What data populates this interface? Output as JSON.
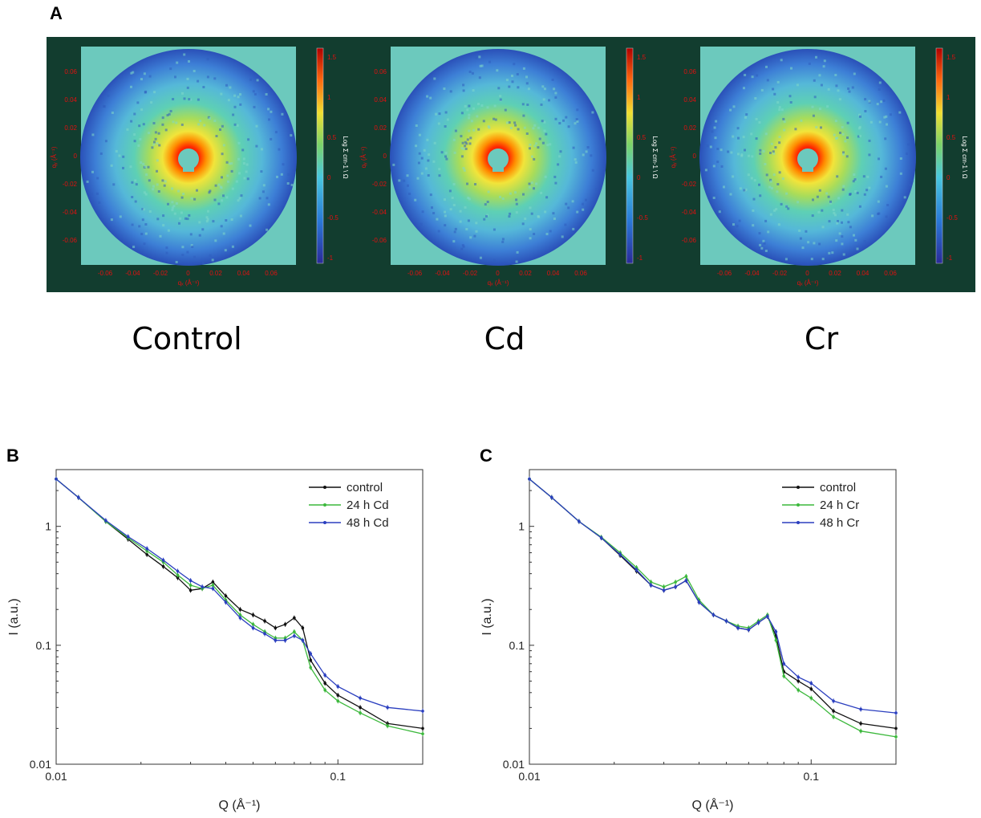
{
  "panels": {
    "a_letter": "A",
    "b_letter": "B",
    "c_letter": "C"
  },
  "patterns": [
    {
      "label": "Control"
    },
    {
      "label": "Cd"
    },
    {
      "label": "Cr"
    }
  ],
  "pattern_axes": {
    "y_ticks": [
      "0.06",
      "0.04",
      "0.02",
      "0",
      "-0.02",
      "-0.04",
      "-0.06"
    ],
    "x_ticks": [
      "-0.06",
      "-0.04",
      "-0.02",
      "0",
      "0.02",
      "0.04",
      "0.06"
    ],
    "x_label": "qₓ (Å⁻¹)",
    "y_label": "qᵧ (Å⁻¹)",
    "cbar_ticks": [
      "1.5",
      "1",
      "0.5",
      "0",
      "-0.5",
      "-1"
    ],
    "cbar_label": "Log Σ cm-1 \\ Ω",
    "colors": {
      "frame": "#123d2f",
      "background": "#6cc9bd",
      "tick_text": "#e01010"
    }
  },
  "chart_data": [
    {
      "type": "line",
      "panel": "B",
      "xscale": "log",
      "yscale": "log",
      "xlabel": "Q (Å⁻¹)",
      "ylabel": "I (a.u.)",
      "xlim": [
        0.01,
        0.2
      ],
      "ylim": [
        0.01,
        3.0
      ],
      "xticks": [
        {
          "v": 0.01,
          "label": "0.01"
        },
        {
          "v": 0.1,
          "label": "0.1"
        }
      ],
      "yticks": [
        {
          "v": 0.01,
          "label": "0.01"
        },
        {
          "v": 0.1,
          "label": "0.1"
        },
        {
          "v": 1,
          "label": "1"
        }
      ],
      "legend": "top-right",
      "series": [
        {
          "name": "control",
          "color": "#111111",
          "x": [
            0.01,
            0.012,
            0.015,
            0.018,
            0.021,
            0.024,
            0.027,
            0.03,
            0.033,
            0.036,
            0.04,
            0.045,
            0.05,
            0.055,
            0.06,
            0.065,
            0.07,
            0.075,
            0.08,
            0.09,
            0.1,
            0.12,
            0.15,
            0.2
          ],
          "y": [
            2.5,
            1.75,
            1.1,
            0.78,
            0.58,
            0.46,
            0.37,
            0.29,
            0.3,
            0.34,
            0.26,
            0.2,
            0.18,
            0.16,
            0.14,
            0.15,
            0.17,
            0.14,
            0.075,
            0.048,
            0.038,
            0.03,
            0.022,
            0.02
          ]
        },
        {
          "name": "24 h Cd",
          "color": "#3cb83c",
          "x": [
            0.01,
            0.012,
            0.015,
            0.018,
            0.021,
            0.024,
            0.027,
            0.03,
            0.033,
            0.036,
            0.04,
            0.045,
            0.05,
            0.055,
            0.06,
            0.065,
            0.07,
            0.075,
            0.08,
            0.09,
            0.1,
            0.12,
            0.15,
            0.2
          ],
          "y": [
            2.5,
            1.75,
            1.1,
            0.8,
            0.62,
            0.5,
            0.39,
            0.32,
            0.3,
            0.32,
            0.24,
            0.18,
            0.15,
            0.13,
            0.115,
            0.115,
            0.13,
            0.11,
            0.065,
            0.042,
            0.034,
            0.027,
            0.021,
            0.018
          ]
        },
        {
          "name": "48 h Cd",
          "color": "#2b3fbf",
          "x": [
            0.01,
            0.012,
            0.015,
            0.018,
            0.021,
            0.024,
            0.027,
            0.03,
            0.033,
            0.036,
            0.04,
            0.045,
            0.05,
            0.055,
            0.06,
            0.065,
            0.07,
            0.075,
            0.08,
            0.09,
            0.1,
            0.12,
            0.15,
            0.2
          ],
          "y": [
            2.5,
            1.75,
            1.12,
            0.82,
            0.65,
            0.52,
            0.42,
            0.35,
            0.31,
            0.3,
            0.23,
            0.17,
            0.14,
            0.125,
            0.11,
            0.11,
            0.12,
            0.11,
            0.085,
            0.056,
            0.045,
            0.036,
            0.03,
            0.028
          ]
        }
      ]
    },
    {
      "type": "line",
      "panel": "C",
      "xscale": "log",
      "yscale": "log",
      "xlabel": "Q (Å⁻¹)",
      "ylabel": "I (a.u.)",
      "xlim": [
        0.01,
        0.2
      ],
      "ylim": [
        0.01,
        3.0
      ],
      "xticks": [
        {
          "v": 0.01,
          "label": "0.01"
        },
        {
          "v": 0.1,
          "label": "0.1"
        }
      ],
      "yticks": [
        {
          "v": 0.01,
          "label": "0.01"
        },
        {
          "v": 0.1,
          "label": "0.1"
        },
        {
          "v": 1,
          "label": "1"
        }
      ],
      "legend": "top-right",
      "series": [
        {
          "name": "control",
          "color": "#111111",
          "x": [
            0.01,
            0.012,
            0.015,
            0.018,
            0.021,
            0.024,
            0.027,
            0.03,
            0.033,
            0.036,
            0.04,
            0.045,
            0.05,
            0.055,
            0.06,
            0.065,
            0.07,
            0.075,
            0.08,
            0.09,
            0.1,
            0.12,
            0.15,
            0.2
          ],
          "y": [
            2.5,
            1.75,
            1.1,
            0.8,
            0.57,
            0.42,
            0.32,
            0.29,
            0.31,
            0.35,
            0.23,
            0.18,
            0.16,
            0.14,
            0.135,
            0.155,
            0.175,
            0.12,
            0.06,
            0.05,
            0.043,
            0.028,
            0.022,
            0.02
          ]
        },
        {
          "name": "24 h Cr",
          "color": "#3cb83c",
          "x": [
            0.01,
            0.012,
            0.015,
            0.018,
            0.021,
            0.024,
            0.027,
            0.03,
            0.033,
            0.036,
            0.04,
            0.045,
            0.05,
            0.055,
            0.06,
            0.065,
            0.07,
            0.075,
            0.08,
            0.09,
            0.1,
            0.12,
            0.15,
            0.2
          ],
          "y": [
            2.5,
            1.75,
            1.1,
            0.81,
            0.6,
            0.45,
            0.34,
            0.31,
            0.34,
            0.38,
            0.24,
            0.18,
            0.16,
            0.145,
            0.14,
            0.16,
            0.18,
            0.11,
            0.055,
            0.042,
            0.036,
            0.025,
            0.019,
            0.017
          ]
        },
        {
          "name": "48 h Cr",
          "color": "#2b3fbf",
          "x": [
            0.01,
            0.012,
            0.015,
            0.018,
            0.021,
            0.024,
            0.027,
            0.03,
            0.033,
            0.036,
            0.04,
            0.045,
            0.05,
            0.055,
            0.06,
            0.065,
            0.07,
            0.075,
            0.08,
            0.09,
            0.1,
            0.12,
            0.15,
            0.2
          ],
          "y": [
            2.5,
            1.75,
            1.1,
            0.8,
            0.58,
            0.43,
            0.32,
            0.29,
            0.31,
            0.35,
            0.23,
            0.18,
            0.16,
            0.14,
            0.135,
            0.155,
            0.175,
            0.13,
            0.07,
            0.054,
            0.048,
            0.034,
            0.029,
            0.027
          ]
        }
      ]
    }
  ]
}
